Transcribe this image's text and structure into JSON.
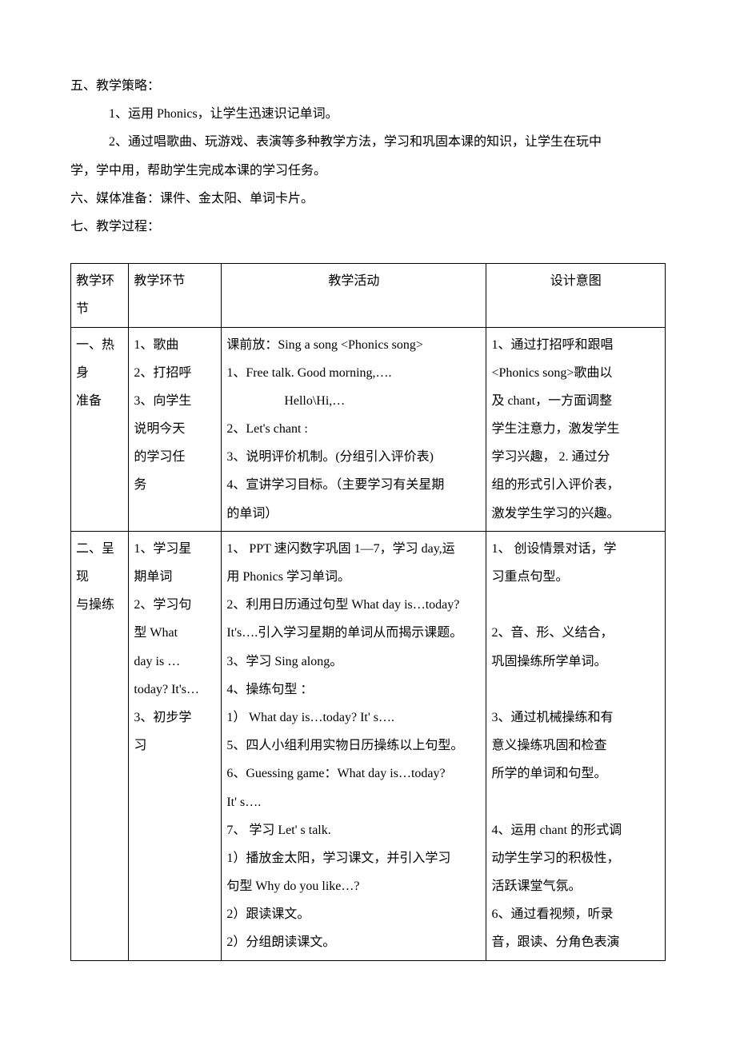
{
  "pre_lines": [
    {
      "cls": "indent1",
      "text": "五、教学策略："
    },
    {
      "cls": "indent2",
      "text": "1、运用 Phonics，让学生迅速识记单词。"
    },
    {
      "cls": "indent2",
      "text": "2、通过唱歌曲、玩游戏、表演等多种教学方法，学习和巩固本课的知识，让学生在玩中"
    },
    {
      "cls": "cont",
      "text": "学，学中用，帮助学生完成本课的学习任务。"
    },
    {
      "cls": "indent1",
      "text": "六、媒体准备：课件、金太阳、单词卡片。"
    },
    {
      "cls": "indent1",
      "text": "七、教学过程："
    }
  ],
  "table": {
    "headers": [
      "教学环节",
      "教学环节",
      "教学活动",
      "设计意图"
    ],
    "rows": [
      {
        "c1": [
          "一、热身",
          "准备"
        ],
        "c2": [
          "1、歌曲",
          "2、打招呼",
          "3、向学生",
          "说明今天",
          "的学习任",
          "务"
        ],
        "c3": [
          "课前放：Sing a song <Phonics song>",
          "1、Free talk. Good morning,….",
          {
            "cls": "indent",
            "text": "Hello\\Hi,…"
          },
          "2、Let's chant :",
          "3、说明评价机制。(分组引入评价表)",
          "4、宣讲学习目标。（主要学习有关星期",
          "的单词）"
        ],
        "c4": [
          "1、通过打招呼和跟唱",
          "<Phonics song>歌曲以",
          "及 chant，一方面调整",
          "学生注意力，激发学生",
          "学习兴趣，  2. 通过分",
          "组的形式引入评价表，",
          "激发学生学习的兴趣。"
        ]
      },
      {
        "c1": [
          "二、呈现",
          "与操练"
        ],
        "c2": [
          "1、学习星",
          "期单词",
          "2、学习句",
          "型    What",
          "day  is  …",
          "today? It's…",
          "3、初步学",
          "习"
        ],
        "c3": [
          "1、  PPT 速闪数字巩固 1—7，学习 day,运",
          "用 Phonics 学习单词。",
          "2、利用日历通过句型 What day is…today?",
          "It's….引入学习星期的单词从而揭示课题。",
          "3、学习 Sing along。",
          "4、操练句型 ：",
          "1）  What day is…today? It' s….",
          "5、四人小组利用实物日历操练以上句型。",
          "6、Guessing game：What day is…today?",
          " It' s….",
          "7、 学习 Let' s talk.",
          "1）播放金太阳，学习课文，并引入学习",
          "句型 Why do you like…?",
          "2）跟读课文。",
          "2）分组朗读课文。"
        ],
        "c4": [
          "1、 创设情景对话，学",
          "习重点句型。",
          "",
          "2、音、形、义结合，",
          "巩固操练所学单词。",
          "",
          "3、通过机械操练和有",
          "意义操练巩固和检查",
          "所学的单词和句型。",
          "",
          "4、运用 chant 的形式调",
          "动学生学习的积极性，",
          "活跃课堂气氛。",
          "6、通过看视频，听录",
          "音，跟读、分角色表演"
        ]
      }
    ]
  }
}
